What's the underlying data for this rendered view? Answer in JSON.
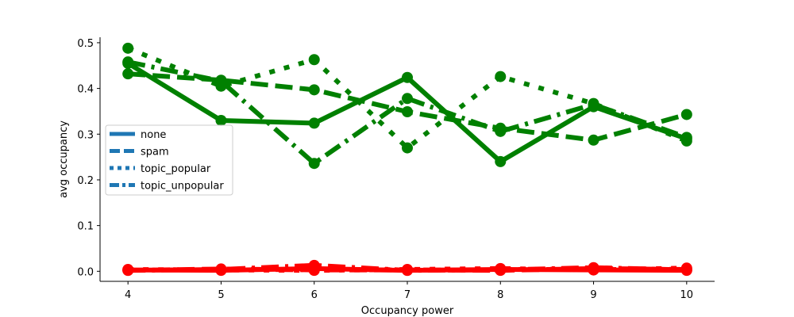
{
  "chart_data": {
    "type": "line",
    "title": "",
    "xlabel": "Occupancy power",
    "ylabel": "avg occupancy",
    "x": [
      4,
      5,
      6,
      7,
      8,
      9,
      10
    ],
    "xlim": [
      3.7,
      10.3
    ],
    "ylim": [
      -0.022,
      0.512
    ],
    "xticks": [
      "4",
      "5",
      "6",
      "7",
      "8",
      "9",
      "10"
    ],
    "yticks": [
      "0.0",
      "0.1",
      "0.2",
      "0.3",
      "0.4",
      "0.5"
    ],
    "grid": false,
    "legend_position": "center-left",
    "legend": [
      {
        "name": "none",
        "style": "solid"
      },
      {
        "name": "spam",
        "style": "dashed"
      },
      {
        "name": "topic_popular",
        "style": "dotted"
      },
      {
        "name": "topic_unpopular",
        "style": "dashdot"
      }
    ],
    "legend_color": "#1f77b4",
    "series": [
      {
        "style": "solid",
        "color": "#008000",
        "values": [
          0.455,
          0.33,
          0.324,
          0.424,
          0.24,
          0.36,
          0.29
        ]
      },
      {
        "style": "dashed",
        "color": "#008000",
        "values": [
          0.432,
          0.418,
          0.397,
          0.349,
          0.313,
          0.287,
          0.343
        ]
      },
      {
        "style": "dotted",
        "color": "#008000",
        "values": [
          0.488,
          0.405,
          0.463,
          0.27,
          0.426,
          0.367,
          0.285
        ]
      },
      {
        "style": "dashdot",
        "color": "#008000",
        "values": [
          0.458,
          0.416,
          0.236,
          0.378,
          0.306,
          0.365,
          0.293
        ]
      },
      {
        "style": "solid",
        "color": "#ff0000",
        "values": [
          0.003,
          0.002,
          0.006,
          0.002,
          0.004,
          0.003,
          0.002
        ]
      },
      {
        "style": "dashed",
        "color": "#ff0000",
        "values": [
          0.002,
          0.005,
          0.003,
          0.003,
          0.002,
          0.006,
          0.004
        ]
      },
      {
        "style": "dotted",
        "color": "#ff0000",
        "values": [
          0.004,
          0.003,
          0.002,
          0.004,
          0.006,
          0.003,
          0.007
        ]
      },
      {
        "style": "dashdot",
        "color": "#ff0000",
        "values": [
          0.002,
          0.004,
          0.013,
          0.002,
          0.003,
          0.008,
          0.003
        ]
      }
    ]
  }
}
